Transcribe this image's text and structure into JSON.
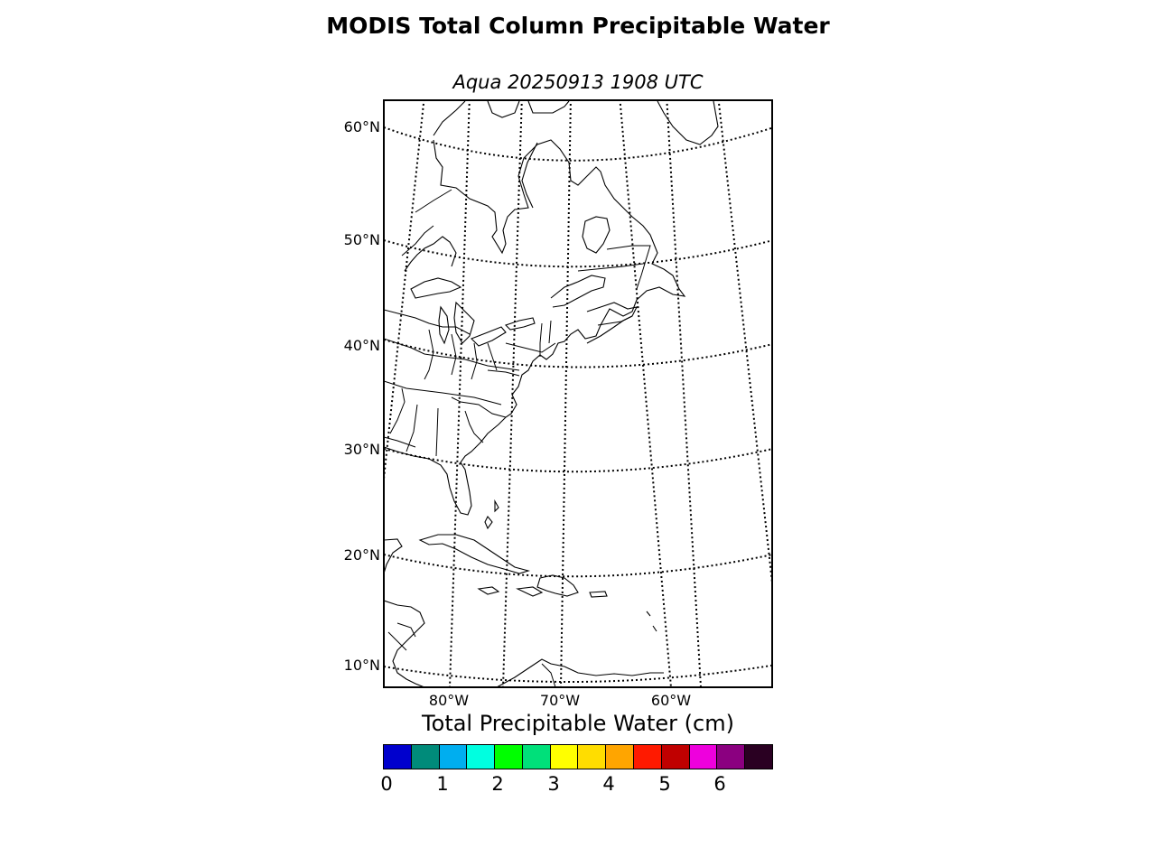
{
  "title": "MODIS Total Column Precipitable Water",
  "subtitle": "Aqua 20250913 1908 UTC",
  "map": {
    "lat_labels": [
      "60°N",
      "50°N",
      "40°N",
      "30°N",
      "20°N",
      "10°N"
    ],
    "lon_labels": [
      "80°W",
      "70°W",
      "60°W"
    ],
    "grid": "dotted",
    "features": [
      "coastlines",
      "country borders",
      "state/province borders"
    ]
  },
  "colorbar": {
    "label": "Total Precipitable Water (cm)",
    "ticks": [
      "0",
      "1",
      "2",
      "3",
      "4",
      "5",
      "6"
    ],
    "range": [
      0,
      7
    ],
    "colors": [
      "#0000cd",
      "#008b7a",
      "#00aeef",
      "#00ffe0",
      "#00ff00",
      "#00e07a",
      "#ffff00",
      "#ffdd00",
      "#ffa500",
      "#ff1a00",
      "#c00000",
      "#ee00dd",
      "#8b0080",
      "#2a0022"
    ]
  }
}
